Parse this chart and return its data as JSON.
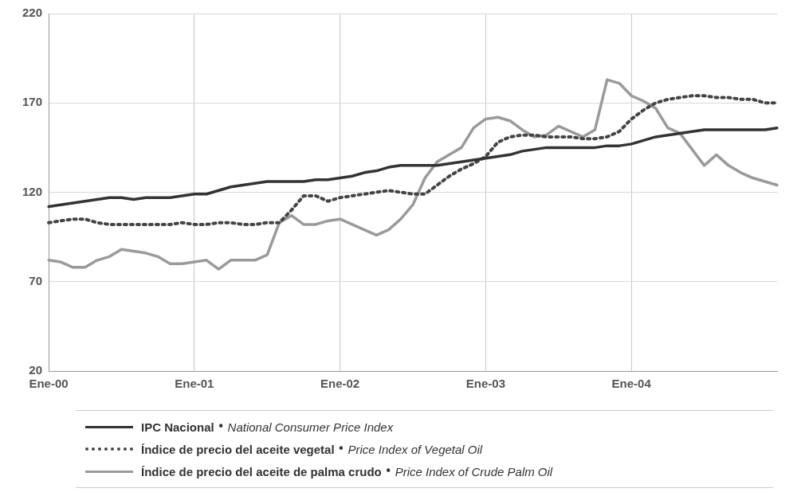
{
  "chart_data": {
    "type": "line",
    "categories": [
      "Ene-00",
      null,
      null,
      null,
      null,
      null,
      null,
      null,
      null,
      null,
      null,
      null,
      "Ene-01",
      null,
      null,
      null,
      null,
      null,
      null,
      null,
      null,
      null,
      null,
      null,
      "Ene-02",
      null,
      null,
      null,
      null,
      null,
      null,
      null,
      null,
      null,
      null,
      null,
      "Ene-03",
      null,
      null,
      null,
      null,
      null,
      null,
      null,
      null,
      null,
      null,
      null,
      "Ene-04",
      null,
      null,
      null,
      null,
      null,
      null,
      null,
      null,
      null,
      null,
      null,
      null
    ],
    "series": [
      {
        "name": "IPC Nacional • National Consumer Price Index",
        "color": "#333333",
        "line_style": "solid",
        "values": [
          112,
          113,
          114,
          115,
          116,
          117,
          117,
          116,
          117,
          117,
          117,
          118,
          119,
          119,
          121,
          123,
          124,
          125,
          126,
          126,
          126,
          126,
          127,
          127,
          128,
          129,
          131,
          132,
          134,
          135,
          135,
          135,
          135,
          136,
          137,
          138,
          139,
          140,
          141,
          143,
          144,
          145,
          145,
          145,
          145,
          145,
          146,
          146,
          147,
          149,
          151,
          152,
          153,
          154,
          155,
          155,
          155,
          155,
          155,
          155,
          156
        ]
      },
      {
        "name": "Índice de precio del aceite vegetal • Price Index of Vegetal Oil",
        "color": "#444444",
        "line_style": "dotted",
        "values": [
          103,
          104,
          105,
          105,
          103,
          102,
          102,
          102,
          102,
          102,
          102,
          103,
          102,
          102,
          103,
          103,
          102,
          102,
          103,
          103,
          110,
          118,
          118,
          115,
          117,
          118,
          119,
          120,
          121,
          120,
          119,
          119,
          124,
          129,
          133,
          136,
          140,
          148,
          151,
          152,
          152,
          151,
          151,
          151,
          150,
          150,
          151,
          154,
          161,
          166,
          170,
          172,
          173,
          174,
          174,
          173,
          173,
          172,
          172,
          170,
          170
        ]
      },
      {
        "name": "Índice de precio del aceite de palma crudo • Price Index of Crude Palm Oil",
        "color": "#9a9a9a",
        "line_style": "solid",
        "values": [
          82,
          81,
          78,
          78,
          82,
          84,
          88,
          87,
          86,
          84,
          80,
          80,
          81,
          82,
          77,
          82,
          82,
          82,
          85,
          103,
          107,
          102,
          102,
          104,
          105,
          102,
          99,
          96,
          99,
          105,
          113,
          128,
          137,
          141,
          145,
          156,
          161,
          162,
          160,
          155,
          151,
          152,
          157,
          154,
          151,
          155,
          183,
          181,
          174,
          171,
          167,
          156,
          153,
          144,
          135,
          141,
          135,
          131,
          128,
          126,
          124
        ]
      }
    ],
    "ylim": [
      20,
      220
    ],
    "yticks": [
      20,
      70,
      120,
      170,
      220
    ],
    "grid": true,
    "legend": "bottom",
    "marker": "none"
  }
}
